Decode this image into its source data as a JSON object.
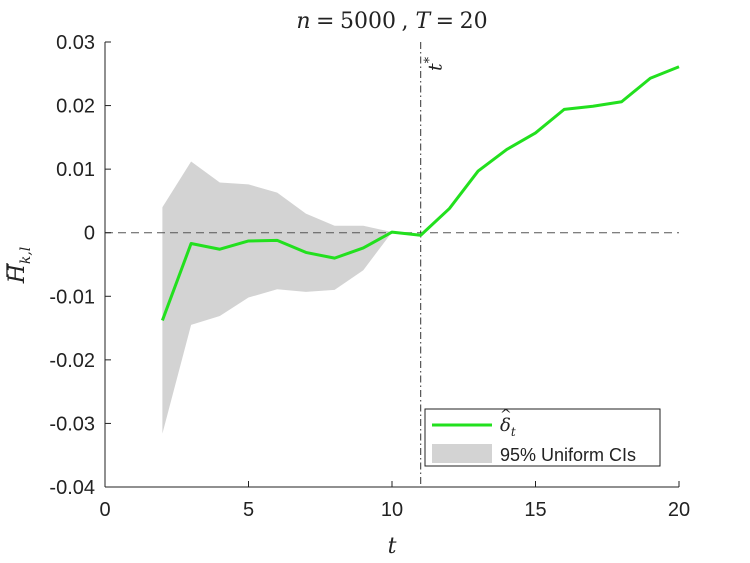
{
  "chart_data": {
    "type": "line",
    "title": {
      "n_label": "n",
      "n_value": "5000",
      "t_label": "T",
      "t_value": "20"
    },
    "xlabel": "t",
    "ylabel": "H",
    "ylabel_subscript": "k,l",
    "xlim": [
      0,
      20
    ],
    "ylim": [
      -0.04,
      0.03
    ],
    "xticks": [
      0,
      5,
      10,
      15,
      20
    ],
    "xtick_labels": [
      "0",
      "5",
      "10",
      "15",
      "20"
    ],
    "yticks": [
      -0.04,
      -0.03,
      -0.02,
      -0.01,
      0,
      0.01,
      0.02,
      0.03
    ],
    "ytick_labels": [
      "-0.04",
      "-0.03",
      "-0.02",
      "-0.01",
      "0",
      "0.01",
      "0.02",
      "0.03"
    ],
    "reference_vline": {
      "x": 11,
      "label": "t",
      "label_sup": "*"
    },
    "reference_hline": {
      "y": 0
    },
    "series": [
      {
        "name": "δ",
        "name_subscript": "t",
        "color": "#22e01e",
        "x": [
          2,
          3,
          4,
          5,
          6,
          7,
          8,
          9,
          10,
          11,
          12,
          13,
          14,
          15,
          16,
          17,
          18,
          19,
          20
        ],
        "y": [
          -0.0138,
          -0.0017,
          -0.0026,
          -0.0013,
          -0.0012,
          -0.0031,
          -0.004,
          -0.0024,
          0.0001,
          -0.0004,
          0.0038,
          0.0097,
          0.0131,
          0.0157,
          0.0194,
          0.0199,
          0.0206,
          0.0243,
          0.0261
        ]
      }
    ],
    "band": {
      "name": "95% Uniform CIs",
      "color": "#d3d3d3",
      "x": [
        2,
        3,
        4,
        5,
        6,
        7,
        8,
        9,
        10
      ],
      "upper": [
        0.004,
        0.0112,
        0.0079,
        0.0076,
        0.0063,
        0.003,
        0.0011,
        0.0011,
        0.0001
      ],
      "lower": [
        -0.0316,
        -0.0145,
        -0.0131,
        -0.0102,
        -0.0089,
        -0.0093,
        -0.009,
        -0.0059,
        0.0001
      ]
    },
    "legend_position": "bottom-right",
    "grid": false
  }
}
